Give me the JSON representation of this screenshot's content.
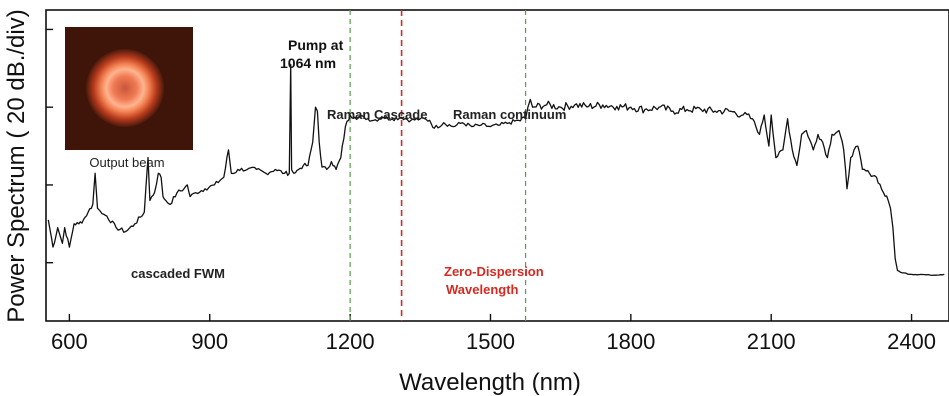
{
  "chart_data": {
    "type": "line",
    "xlabel": "Wavelength (nm)",
    "ylabel": "Power Spectrum ( 20 dB./div)",
    "xlim": [
      550,
      2480
    ],
    "ylim": [
      0,
      4
    ],
    "x_ticks": [
      600,
      900,
      1200,
      1500,
      1800,
      2100,
      2400
    ],
    "x_tick_labels": [
      "600",
      "900",
      "1200",
      "1500",
      "1800",
      "2100",
      "2400"
    ],
    "y_ticks": [
      0.75,
      1.75,
      2.75,
      3.75
    ],
    "grid": false,
    "series": [
      {
        "color": "#111111",
        "x": [
          555,
          565,
          575,
          585,
          590,
          600,
          610,
          620,
          630,
          640,
          650,
          655,
          660,
          665,
          670,
          680,
          700,
          720,
          740,
          760,
          768,
          772,
          776,
          782,
          790,
          796,
          800,
          806,
          815,
          830,
          845,
          852,
          858,
          870,
          890,
          910,
          930,
          940,
          946,
          952,
          960,
          980,
          1000,
          1020,
          1040,
          1060,
          1070,
          1073,
          1075,
          1077,
          1080,
          1090,
          1100,
          1110,
          1120,
          1126,
          1130,
          1134,
          1140,
          1150,
          1160,
          1170,
          1180,
          1190,
          1200,
          1210,
          1230,
          1250,
          1270,
          1290,
          1310,
          1330,
          1350,
          1370,
          1380,
          1400,
          1420,
          1440,
          1460,
          1480,
          1500,
          1520,
          1540,
          1560,
          1575,
          1580,
          1585,
          1590,
          1620,
          1650,
          1680,
          1710,
          1740,
          1770,
          1800,
          1830,
          1860,
          1890,
          1920,
          1950,
          1980,
          2010,
          2040,
          2060,
          2075,
          2085,
          2095,
          2100,
          2110,
          2125,
          2135,
          2145,
          2155,
          2165,
          2175,
          2190,
          2200,
          2210,
          2220,
          2230,
          2245,
          2255,
          2262,
          2270,
          2277,
          2285,
          2295,
          2310,
          2325,
          2340,
          2350,
          2355,
          2360,
          2365,
          2370,
          2380,
          2400,
          2420,
          2440,
          2470
        ],
        "y": [
          1.3,
          0.95,
          1.2,
          1.0,
          1.2,
          0.95,
          1.25,
          1.25,
          1.3,
          1.4,
          1.5,
          1.9,
          1.45,
          1.42,
          1.38,
          1.35,
          1.2,
          1.15,
          1.25,
          1.4,
          2.1,
          1.55,
          1.6,
          1.65,
          1.9,
          1.85,
          1.6,
          1.55,
          1.5,
          1.65,
          1.7,
          1.75,
          1.6,
          1.65,
          1.7,
          1.75,
          1.85,
          2.2,
          1.9,
          1.9,
          1.95,
          1.95,
          1.95,
          1.9,
          1.95,
          1.9,
          1.9,
          3.3,
          1.95,
          1.92,
          1.9,
          1.95,
          2.0,
          2.0,
          2.3,
          2.75,
          2.7,
          2.3,
          1.98,
          1.95,
          2.05,
          1.95,
          2.1,
          2.5,
          2.65,
          2.62,
          2.62,
          2.58,
          2.62,
          2.6,
          2.62,
          2.58,
          2.6,
          2.58,
          2.48,
          2.55,
          2.5,
          2.55,
          2.5,
          2.52,
          2.5,
          2.52,
          2.55,
          2.58,
          2.6,
          2.75,
          2.85,
          2.75,
          2.78,
          2.75,
          2.78,
          2.76,
          2.78,
          2.76,
          2.75,
          2.72,
          2.75,
          2.7,
          2.72,
          2.72,
          2.7,
          2.7,
          2.65,
          2.6,
          2.4,
          2.65,
          2.25,
          2.65,
          2.1,
          2.2,
          2.6,
          2.2,
          2.0,
          2.4,
          2.45,
          2.2,
          2.4,
          2.3,
          2.1,
          2.4,
          2.45,
          2.2,
          1.7,
          2.1,
          2.2,
          2.25,
          1.95,
          1.9,
          1.85,
          1.65,
          1.55,
          1.45,
          1.2,
          0.8,
          0.65,
          0.62,
          0.6,
          0.6,
          0.59,
          0.6
        ]
      }
    ],
    "markers": [
      {
        "x": 1200,
        "color": "#55a04a",
        "style": "dashed"
      },
      {
        "x": 1310,
        "color": "#d42a22",
        "style": "dashed"
      },
      {
        "x": 1575,
        "color": "#55a04a",
        "style": "dashed"
      }
    ],
    "annotations": {
      "pump_line1": "Pump at",
      "pump_line2": "1064 nm",
      "raman_cascade": "Raman Cascade",
      "raman_continuum": "Raman continuum",
      "cascaded_fwm": "cascaded FWM",
      "zdw_line1": "Zero-Dispersion",
      "zdw_line2": "Wavelength",
      "output_beam": "Output beam"
    },
    "colors": {
      "line": "#111111",
      "marker_green": "#55a04a",
      "marker_red": "#d42a22",
      "zdw_text": "#d42a22"
    }
  }
}
